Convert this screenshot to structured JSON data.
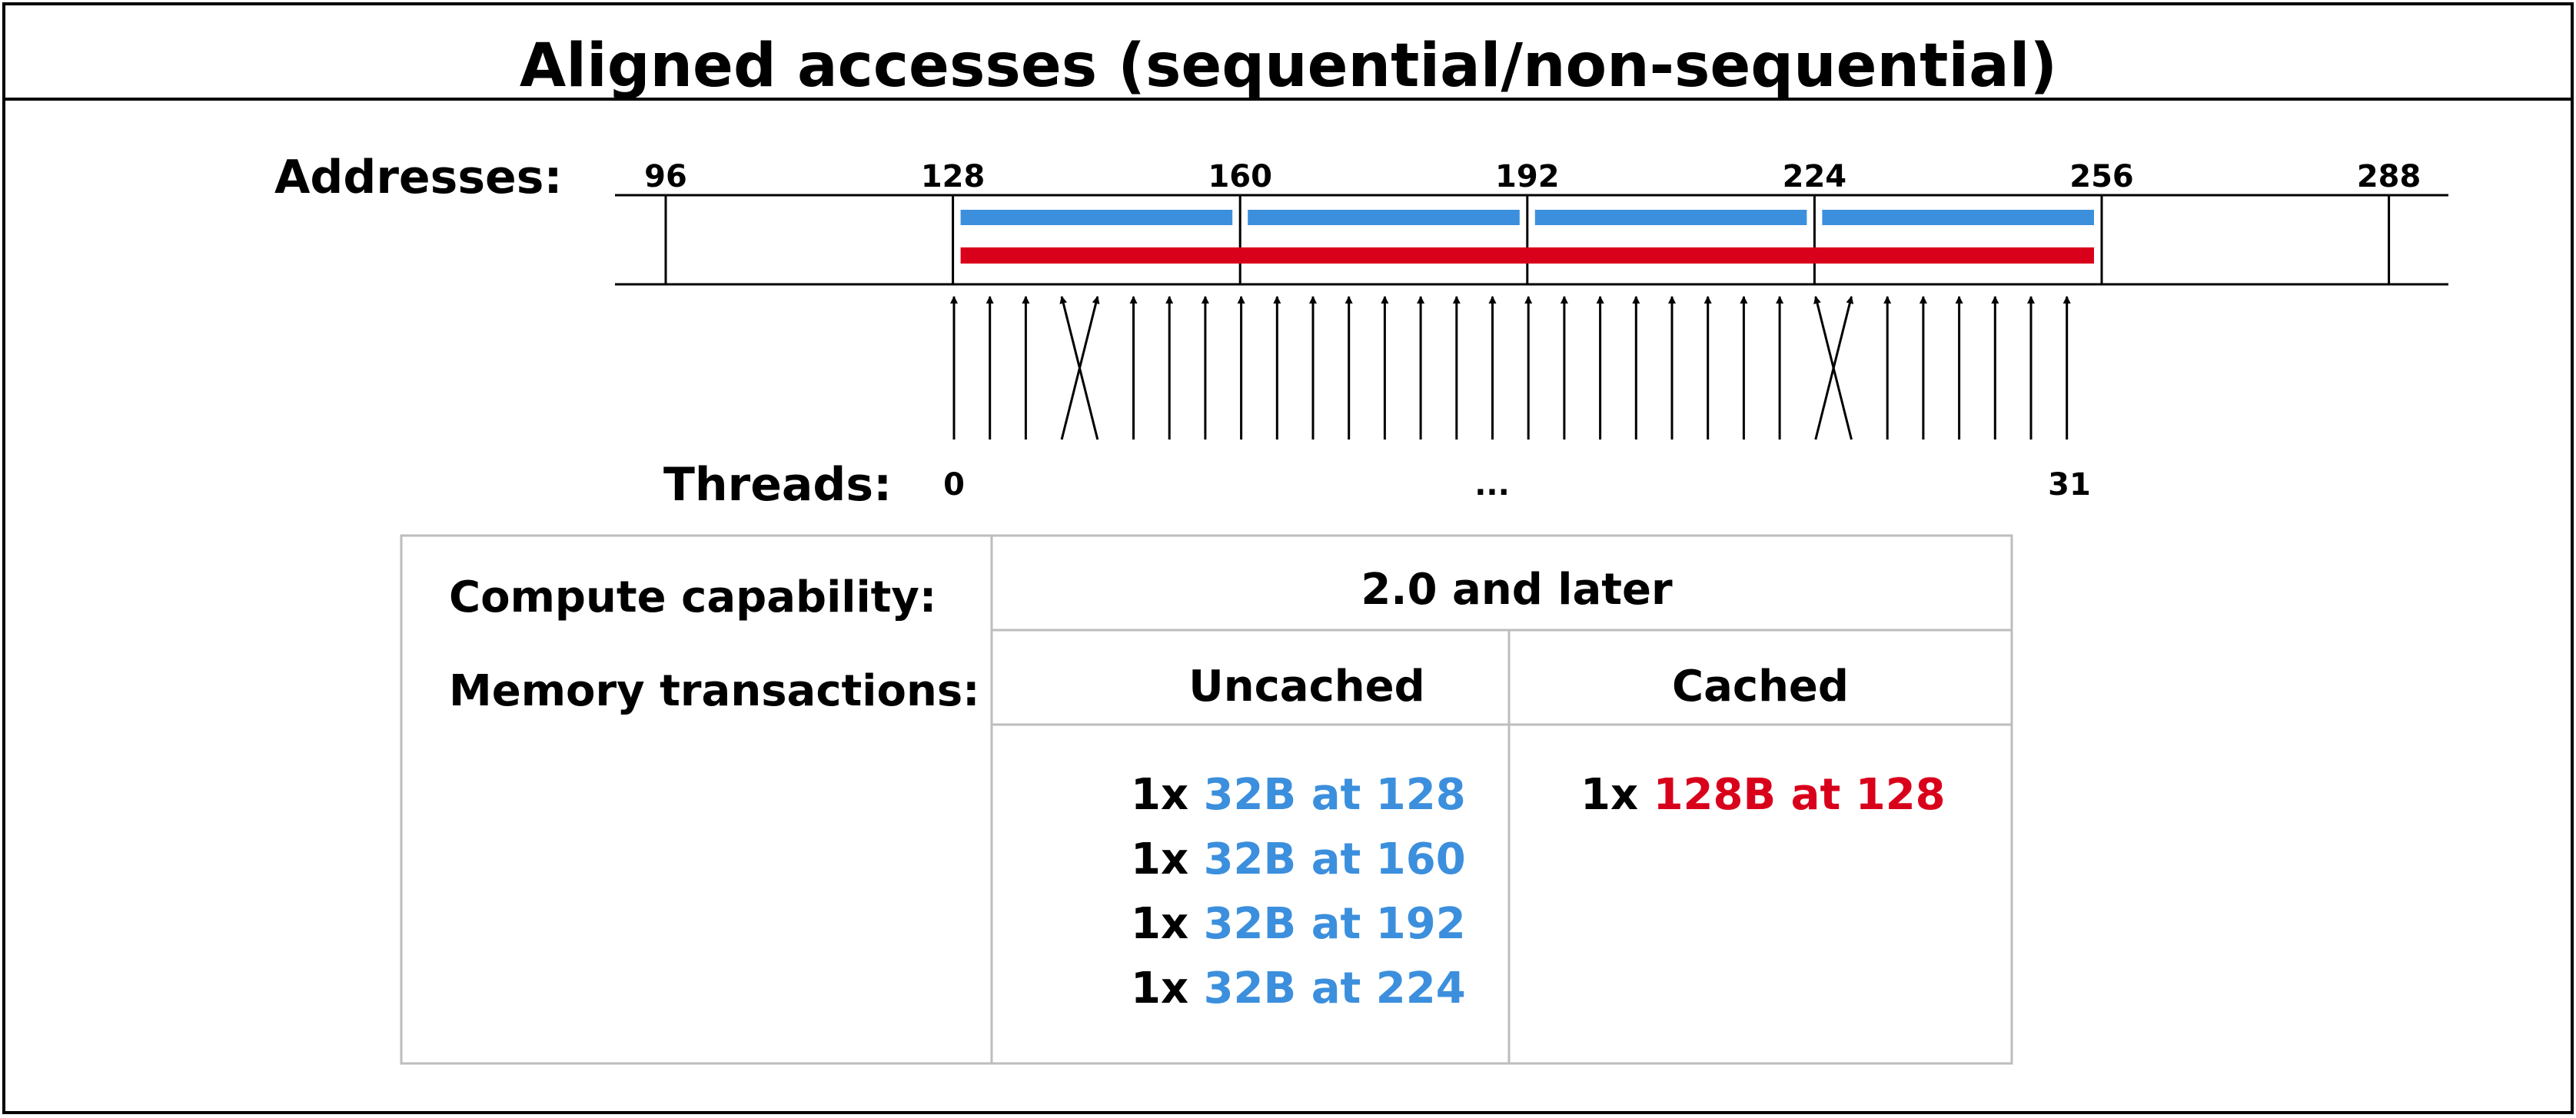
{
  "title": "Aligned accesses (sequential/non-sequential)",
  "addresses_label": "Addresses:",
  "address_ticks": [
    "96",
    "128",
    "160",
    "192",
    "224",
    "256",
    "288"
  ],
  "threads_label": "Threads:",
  "thread_labels": {
    "first": "0",
    "middle": "...",
    "last": "31"
  },
  "thread_count": 32,
  "thread_targets": [
    0,
    1,
    2,
    4,
    3,
    5,
    6,
    7,
    8,
    9,
    10,
    11,
    12,
    13,
    14,
    15,
    16,
    17,
    18,
    19,
    20,
    21,
    22,
    23,
    25,
    24,
    26,
    27,
    28,
    29,
    30,
    31
  ],
  "segments": {
    "uncached": [
      {
        "start": 128,
        "end": 160
      },
      {
        "start": 160,
        "end": 192
      },
      {
        "start": 192,
        "end": 224
      },
      {
        "start": 224,
        "end": 256
      }
    ],
    "cached": [
      {
        "start": 128,
        "end": 256
      }
    ]
  },
  "table": {
    "labels": {
      "compute": "Compute capability:",
      "memory": "Memory transactions:"
    },
    "capability": "2.0 and later",
    "col_uncached": "Uncached",
    "col_cached": "Cached",
    "uncached_rows": [
      {
        "count": "1x",
        "desc": "32B at 128"
      },
      {
        "count": "1x",
        "desc": "32B at 160"
      },
      {
        "count": "1x",
        "desc": "32B at 192"
      },
      {
        "count": "1x",
        "desc": "32B at 224"
      }
    ],
    "cached_rows": [
      {
        "count": "1x",
        "desc": "128B at 128"
      }
    ]
  },
  "colors": {
    "uncached": "#3b8fdc",
    "cached": "#d9001b",
    "line": "#000000",
    "table_border": "#bdbdbd"
  }
}
